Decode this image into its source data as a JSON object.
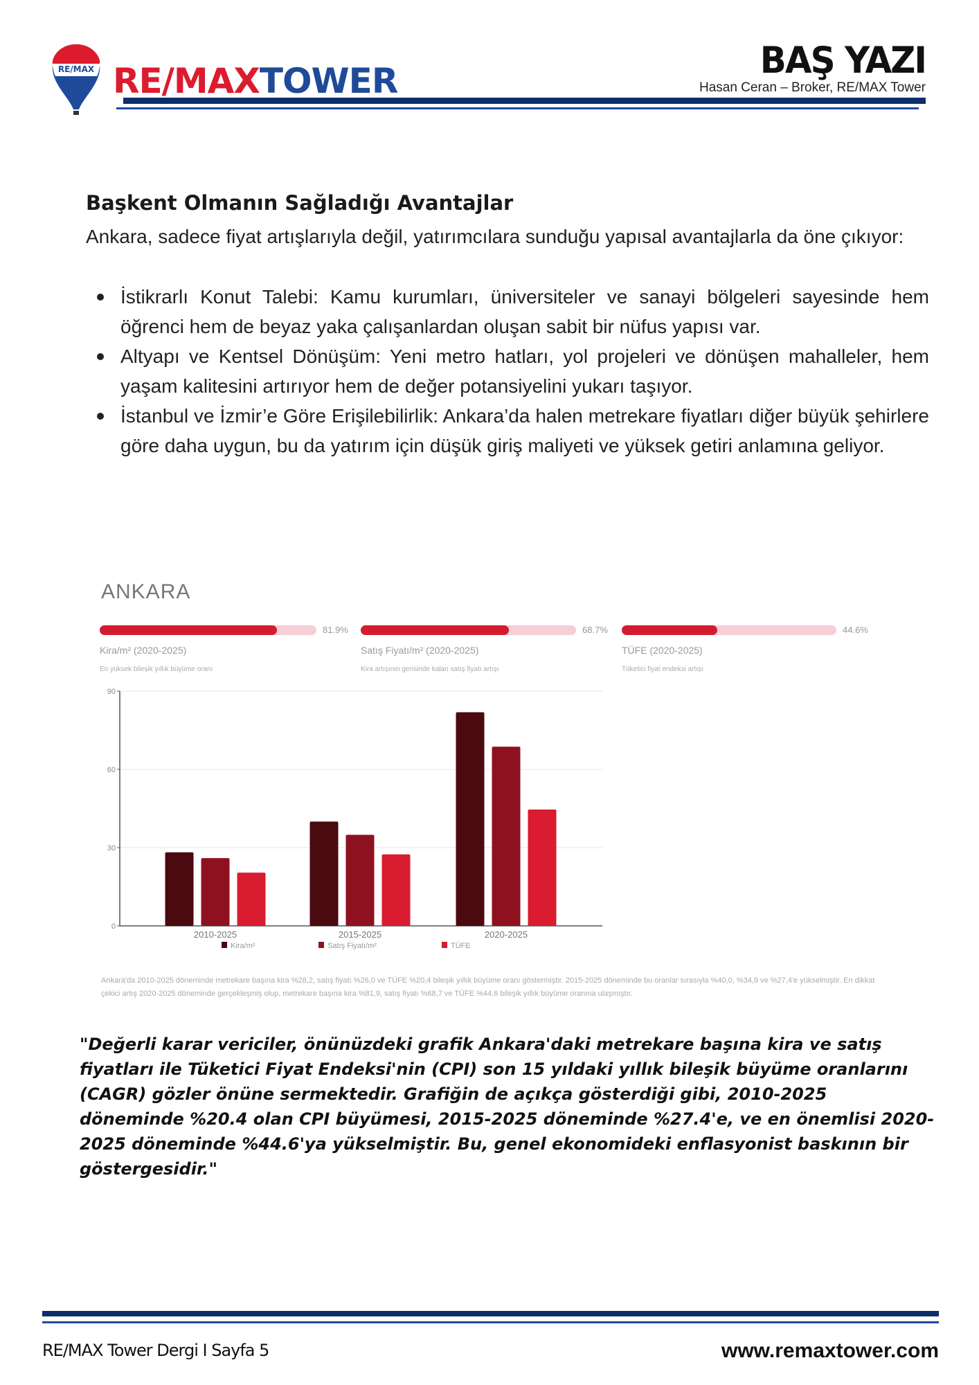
{
  "header": {
    "logo_balloon_text": "RE/MAX",
    "brand_red": "RE/MAX",
    "brand_blue": "TOWER",
    "section_title": "BAŞ YAZI",
    "byline": "Hasan Ceran – Broker, RE/MAX Tower"
  },
  "article": {
    "heading": "Başkent Olmanın Sağladığı Avantajlar",
    "intro": "Ankara, sadece fiyat artışlarıyla değil, yatırımcılara sunduğu yapısal avantajlarla da öne çıkıyor:",
    "bullets": [
      "İstikrarlı Konut Talebi: Kamu kurumları, üniversiteler ve sanayi bölgeleri sayesinde hem öğrenci hem de beyaz yaka çalışanlardan oluşan sabit bir nüfus yapısı var.",
      "Altyapı ve Kentsel Dönüşüm: Yeni metro hatları, yol projeleri ve dönüşen mahalleler, hem yaşam kalitesini artırıyor hem de değer potansiyelini yukarı taşıyor.",
      "İstanbul ve İzmir’e Göre Erişilebilirlik: Ankara’da halen metrekare fiyatları diğer büyük şehirlere göre daha uygun, bu da yatırım için düşük giriş maliyeti ve yüksek getiri anlamına geliyor."
    ]
  },
  "infographic": {
    "city": "ANKARA",
    "progress": [
      {
        "value": 81.9,
        "value_label": "81.9%",
        "label": "Kira/m² (2020-2025)",
        "sub": "En yüksek bileşik yıllık büyüme oranı"
      },
      {
        "value": 68.7,
        "value_label": "68.7%",
        "label": "Satış Fiyatı/m² (2020-2025)",
        "sub": "Kira artışının gerisinde kalan satış fiyatı artışı"
      },
      {
        "value": 44.6,
        "value_label": "44.6%",
        "label": "TÜFE (2020-2025)",
        "sub": "Tüketici fiyat endeksi artışı"
      }
    ],
    "progress_max": 100,
    "colors": {
      "fill": "#d41c30",
      "track": "#f5cfd4"
    },
    "caption": "Ankara'da 2010-2025 döneminde metrekare başına kira %28,2, satış fiyatı %26,0 ve TÜFE %20,4 bileşik yıllık büyüme oranı göstermiştir. 2015-2025 döneminde bu oranlar sırasıyla %40,0, %34,9 ve %27,4'e yükselmiştir. En dikkat çekici artış 2020-2025 döneminde gerçekleşmiş olup, metrekare başına kira %81,9, satış fiyatı %68,7 ve TÜFE %44,6 bileşik yıllık büyüme oranına ulaşmıştır."
  },
  "chart_data": {
    "type": "bar",
    "categories": [
      "2010-2025",
      "2015-2025",
      "2020-2025"
    ],
    "series": [
      {
        "name": "Kira/m²",
        "values": [
          28.2,
          40.0,
          81.9
        ],
        "color": "#4a0a10"
      },
      {
        "name": "Satış Fiyatı/m²",
        "values": [
          26.0,
          34.9,
          68.7
        ],
        "color": "#8e1120"
      },
      {
        "name": "TÜFE",
        "values": [
          20.4,
          27.4,
          44.6
        ],
        "color": "#d91c30"
      }
    ],
    "yticks": [
      "0",
      "30",
      "60",
      "90"
    ],
    "ylim": [
      0,
      90
    ],
    "grid": true,
    "legend": "bottom"
  },
  "quote": "\"Değerli karar vericiler, önünüzdeki grafik Ankara'daki metrekare başına kira ve satış fiyatları ile Tüketici Fiyat Endeksi'nin (CPI) son 15 yıldaki yıllık bileşik büyüme oranlarını (CAGR) gözler önüne sermektedir. Grafiğin de açıkça gösterdiği gibi, 2010-2025 döneminde %20.4 olan CPI büyümesi, 2015-2025 döneminde %27.4'e, ve en önemlisi 2020-2025 döneminde %44.6'ya yükselmiştir. Bu, genel ekonomideki enflasyonist baskının bir göstergesidir.\"",
  "footer": {
    "left": "RE/MAX Tower Dergi I Sayfa 5",
    "right": "www.remaxtower.com"
  }
}
